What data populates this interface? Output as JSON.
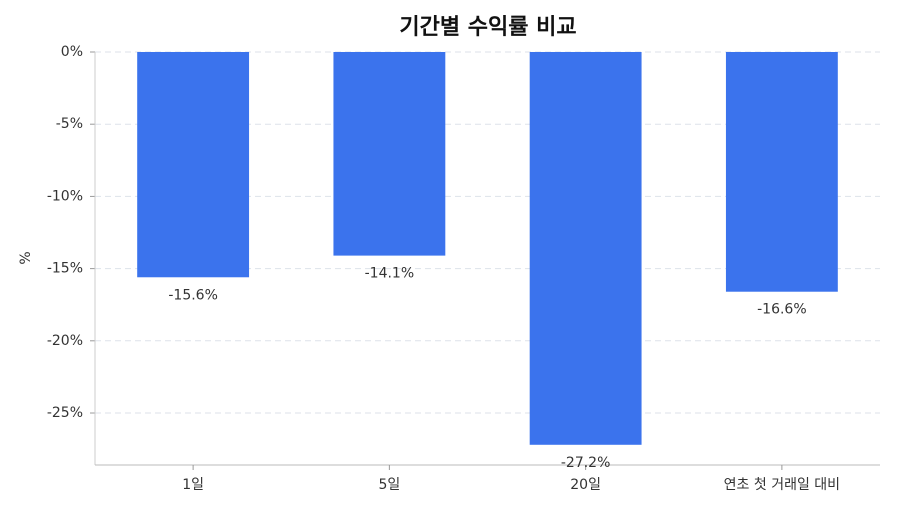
{
  "chart_data": {
    "type": "bar",
    "title": "기간별 수익률 비교",
    "y_label": "%",
    "categories": [
      "1일",
      "5일",
      "20일",
      "연초 첫 거래일 대비"
    ],
    "values": [
      -15.6,
      -14.1,
      -27.2,
      -16.6
    ],
    "value_labels": [
      "-15.6%",
      "-14.1%",
      "-27.2%",
      "-16.6%"
    ],
    "color": "#3b73ed",
    "ylim": [
      -28.6,
      0
    ],
    "yticks": [
      {
        "value": 0,
        "label": "0%"
      },
      {
        "value": -5,
        "label": "-5%"
      },
      {
        "value": -10,
        "label": "-10%"
      },
      {
        "value": -15,
        "label": "-15%"
      },
      {
        "value": -20,
        "label": "-20%"
      },
      {
        "value": -25,
        "label": "-25%"
      }
    ],
    "grid": true
  }
}
